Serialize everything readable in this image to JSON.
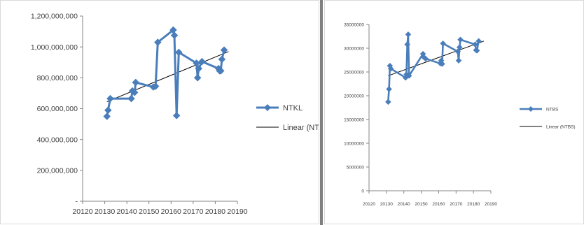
{
  "chart_data": [
    {
      "type": "line",
      "title": "",
      "xlabel": "",
      "ylabel": "",
      "xlim": [
        20120,
        20190
      ],
      "ylim": [
        0,
        1200000000
      ],
      "x_ticks": [
        "20120",
        "20130",
        "20140",
        "20150",
        "20160",
        "20170",
        "20180",
        "20190"
      ],
      "y_ticks": [
        "-",
        "200,000,000",
        "400,000,000",
        "600,000,000",
        "800,000,000",
        "1,000,000,000",
        "1,200,000,000"
      ],
      "grid": false,
      "legend_position": "right",
      "series": [
        {
          "name": "NTKL",
          "color": "#4a7ebb",
          "marker": "diamond",
          "x": [
            20131,
            20131.5,
            20132.5,
            20142,
            20142.5,
            20143.5,
            20144,
            20152,
            20153,
            20154,
            20161,
            20161.5,
            20162.5,
            20163.5,
            20171.5,
            20172,
            20172.5,
            20174,
            20181.5,
            20182,
            20182.5,
            20183,
            20184
          ],
          "y": [
            550000000,
            590000000,
            665000000,
            665000000,
            715000000,
            705000000,
            770000000,
            740000000,
            745000000,
            1030000000,
            1110000000,
            1075000000,
            555000000,
            965000000,
            895000000,
            800000000,
            860000000,
            905000000,
            860000000,
            845000000,
            845000000,
            920000000,
            980000000
          ]
        },
        {
          "name": "Linear (NTKL)",
          "color": "#000000",
          "type": "trendline",
          "x": [
            20131,
            20186
          ],
          "y": [
            645000000,
            970000000
          ]
        }
      ]
    },
    {
      "type": "line",
      "title": "",
      "xlabel": "",
      "ylabel": "",
      "xlim": [
        20120,
        20190
      ],
      "ylim": [
        0,
        35000000
      ],
      "x_ticks": [
        "20120",
        "20130",
        "20140",
        "20150",
        "20160",
        "20170",
        "20180",
        "20190"
      ],
      "y_ticks": [
        "0",
        "5000000",
        "10000000",
        "15000000",
        "20000000",
        "25000000",
        "30000000",
        "35000000"
      ],
      "grid": false,
      "legend_position": "right",
      "series": [
        {
          "name": "NTBS",
          "color": "#4a7ebb",
          "marker": "diamond",
          "x": [
            20131,
            20131.5,
            20132,
            20132.5,
            20141,
            20141.5,
            20142,
            20142.5,
            20143,
            20151,
            20151.5,
            20152.5,
            20161,
            20161.5,
            20162,
            20162.5,
            20171,
            20171.5,
            20172,
            20172.5,
            20181,
            20181.5,
            20182,
            20183
          ],
          "y": [
            18700000,
            21400000,
            26300000,
            25700000,
            23800000,
            24500000,
            30800000,
            32900000,
            24200000,
            28800000,
            28100000,
            27800000,
            26800000,
            27400000,
            26700000,
            31000000,
            29300000,
            27400000,
            30200000,
            31800000,
            30800000,
            29600000,
            29500000,
            31500000
          ]
        },
        {
          "name": "Linear (NTBS)",
          "color": "#000000",
          "type": "trendline",
          "x": [
            20131,
            20186
          ],
          "y": [
            24200000,
            31500000
          ]
        }
      ]
    }
  ]
}
